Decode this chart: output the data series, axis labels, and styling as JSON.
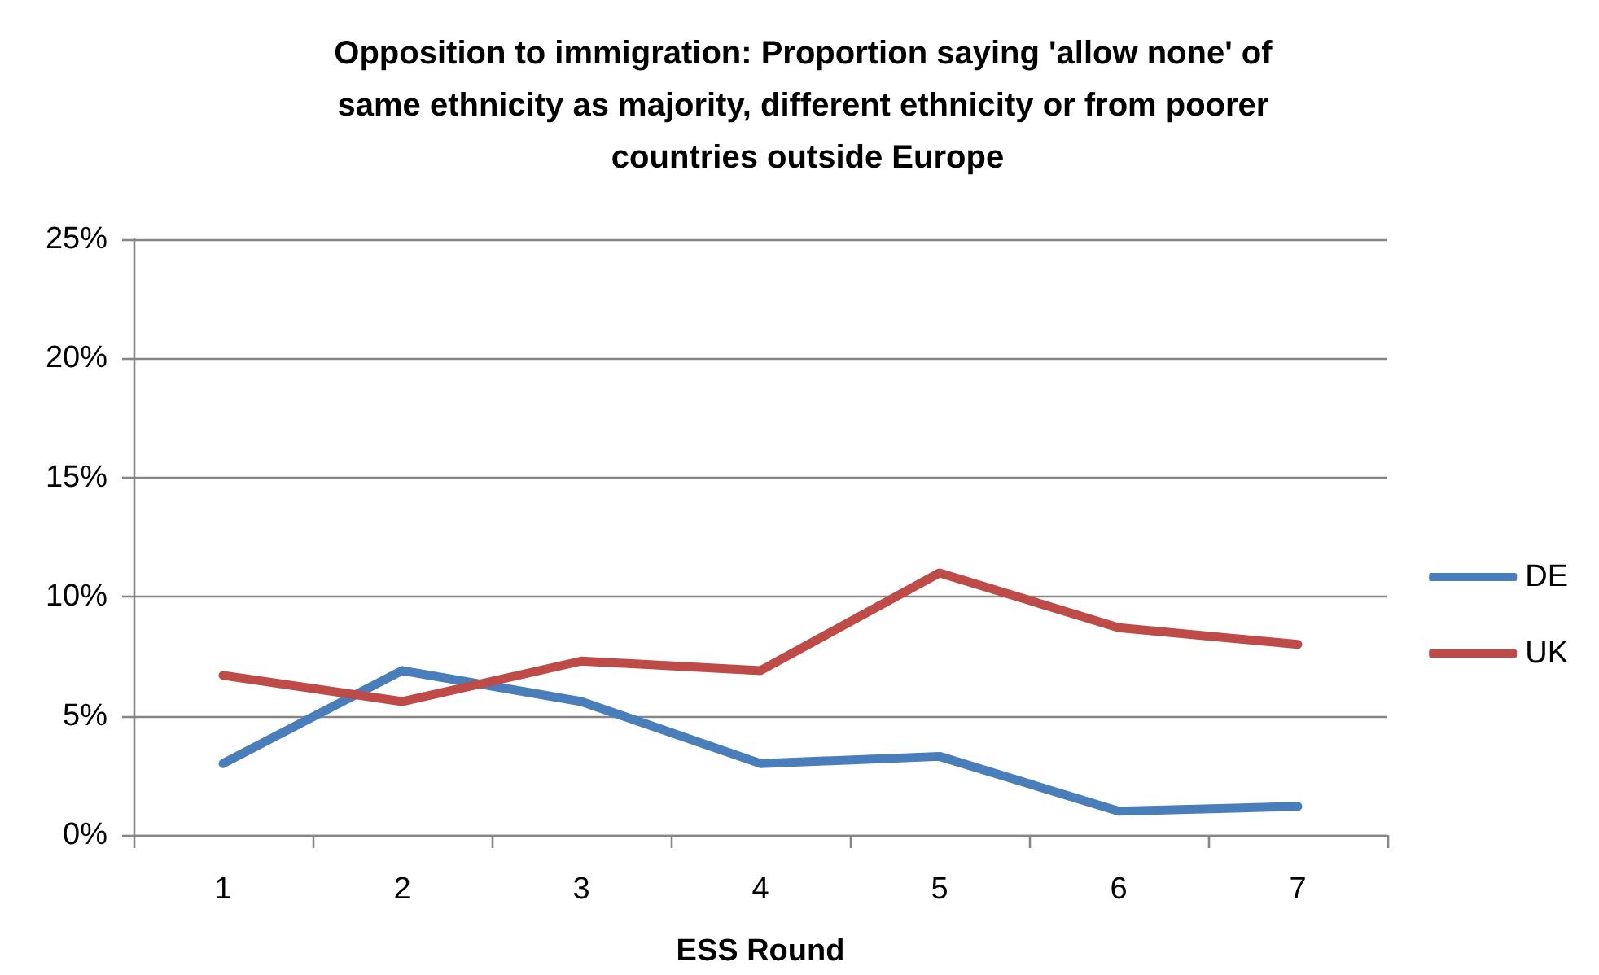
{
  "chart_data": {
    "type": "line",
    "title": "Opposition to immigration: Proportion saying 'allow none' of same ethnicity as majority, different ethnicity or from poorer countries outside Europe",
    "xlabel": "ESS Round",
    "categories": [
      "1",
      "2",
      "3",
      "4",
      "5",
      "6",
      "7"
    ],
    "series": [
      {
        "name": "DE",
        "color": "#4a7ebb",
        "values": [
          3.0,
          6.9,
          5.6,
          3.0,
          3.3,
          1.0,
          1.2
        ]
      },
      {
        "name": "UK",
        "color": "#be4b48",
        "values": [
          6.7,
          5.6,
          7.3,
          6.9,
          11.0,
          8.7,
          8.0
        ]
      }
    ],
    "ylim": [
      0,
      25
    ],
    "yticks": [
      {
        "value": 0,
        "label": "0%"
      },
      {
        "value": 5,
        "label": "5%"
      },
      {
        "value": 10,
        "label": "10%"
      },
      {
        "value": 15,
        "label": "15%"
      },
      {
        "value": 20,
        "label": "20%"
      },
      {
        "value": 25,
        "label": "25%"
      }
    ],
    "grid": "y",
    "legend": "right",
    "marker": "none",
    "line_style": "solid"
  }
}
